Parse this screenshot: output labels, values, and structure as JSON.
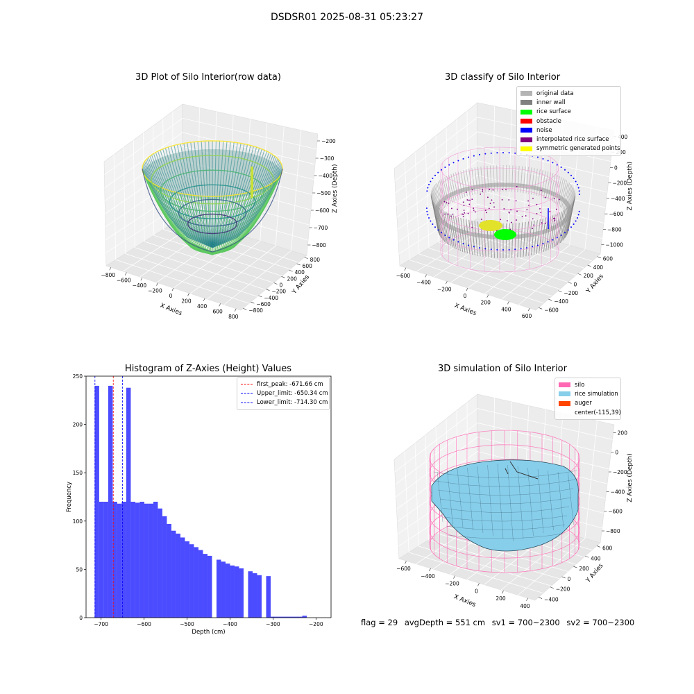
{
  "suptitle": "DSDSR01 2025-08-31 05:23:27",
  "panel1": {
    "title": "3D Plot of Silo Interior(row data)",
    "xlabel": "X Axies",
    "ylabel": "Y Axies",
    "zlabel": "Z Axies (Depth)",
    "xticks": [
      "−800",
      "−600",
      "−400",
      "−200",
      "0",
      "200",
      "400",
      "600",
      "800"
    ],
    "yticks": [
      "−800",
      "−600",
      "−400",
      "−200",
      "0",
      "200",
      "400",
      "600",
      "800"
    ],
    "zticks": [
      "−200",
      "−300",
      "−400",
      "−500",
      "−600",
      "−700",
      "−800"
    ]
  },
  "panel2": {
    "title": "3D classify of Silo Interior",
    "xlabel": "X Axies",
    "ylabel": "Y Axies",
    "zlabel": "Z Axies (Depth)",
    "xticks": [
      "−600",
      "−400",
      "−200",
      "0",
      "200",
      "400",
      "600"
    ],
    "yticks": [
      "−600",
      "−400",
      "−200",
      "0",
      "200",
      "400",
      "600"
    ],
    "zticks": [
      "400",
      "200",
      "0",
      "−200",
      "−400",
      "−600",
      "−800",
      "−1000"
    ],
    "legend": [
      {
        "label": "original data",
        "color": "#b4b4b4"
      },
      {
        "label": "inner wall",
        "color": "#808080"
      },
      {
        "label": "rice surface",
        "color": "#00ff00"
      },
      {
        "label": "obstacle",
        "color": "#ff0000"
      },
      {
        "label": "noise",
        "color": "#0000ff"
      },
      {
        "label": "interpolated rice surface",
        "color": "#800080"
      },
      {
        "label": "symmetric generated points",
        "color": "#ffff00"
      }
    ]
  },
  "panel4": {
    "title": "3D simulation of Silo Interior",
    "xlabel": "X Axies",
    "ylabel": "Y Axies",
    "zlabel": "Z Axies (Depth)",
    "xticks": [
      "−600",
      "−400",
      "−200",
      "0",
      "200",
      "400"
    ],
    "yticks": [
      "−400",
      "−200",
      "0",
      "200",
      "400",
      "600"
    ],
    "zticks": [
      "200",
      "0",
      "−200",
      "−400",
      "−600",
      "−800"
    ],
    "legend": [
      {
        "label": "silo",
        "color": "#ff69b4"
      },
      {
        "label": "rice simulation",
        "color": "#87ceeb"
      },
      {
        "label": "auger",
        "color": "#ff4500"
      },
      {
        "label": "center(-115,39)",
        "color": ""
      }
    ]
  },
  "footer": {
    "flag": "flag = 29",
    "avg_depth": "avgDepth = 551 cm",
    "sv1": "sv1 = 700~2300",
    "sv2": "sv2 = 700~2300"
  },
  "chart_data": [
    {
      "type": "histogram",
      "title": "Histogram of Z-Axies (Height) Values",
      "xlabel": "Depth (cm)",
      "ylabel": "Frequency",
      "xlim": [
        -735,
        -165
      ],
      "ylim": [
        0,
        250
      ],
      "xticks": [
        -700,
        -600,
        -500,
        -400,
        -300,
        -200
      ],
      "yticks": [
        0,
        50,
        100,
        150,
        200,
        250
      ],
      "bar_color": "#4b4bff",
      "bin_start": -715,
      "bin_width": 10.5,
      "counts": [
        240,
        120,
        120,
        240,
        120,
        118,
        120,
        238,
        120,
        119,
        120,
        118,
        118,
        120,
        113,
        105,
        97,
        90,
        87,
        83,
        79,
        76,
        73,
        70,
        66,
        64,
        0,
        60,
        58,
        56,
        54,
        53,
        51,
        0,
        48,
        46,
        44,
        0,
        43,
        1,
        1,
        1,
        1,
        1,
        1,
        1,
        2
      ],
      "vlines": [
        {
          "label": "first_peak: -671.66 cm",
          "value": -671.66,
          "color": "#ff0000"
        },
        {
          "label": "Upper_limit: -650.34 cm",
          "value": -650.34,
          "color": "#0000ff"
        },
        {
          "label": "Lower_limit: -714.30 cm",
          "value": -714.3,
          "color": "#0000ff"
        }
      ],
      "legend_position": "top-right"
    }
  ]
}
